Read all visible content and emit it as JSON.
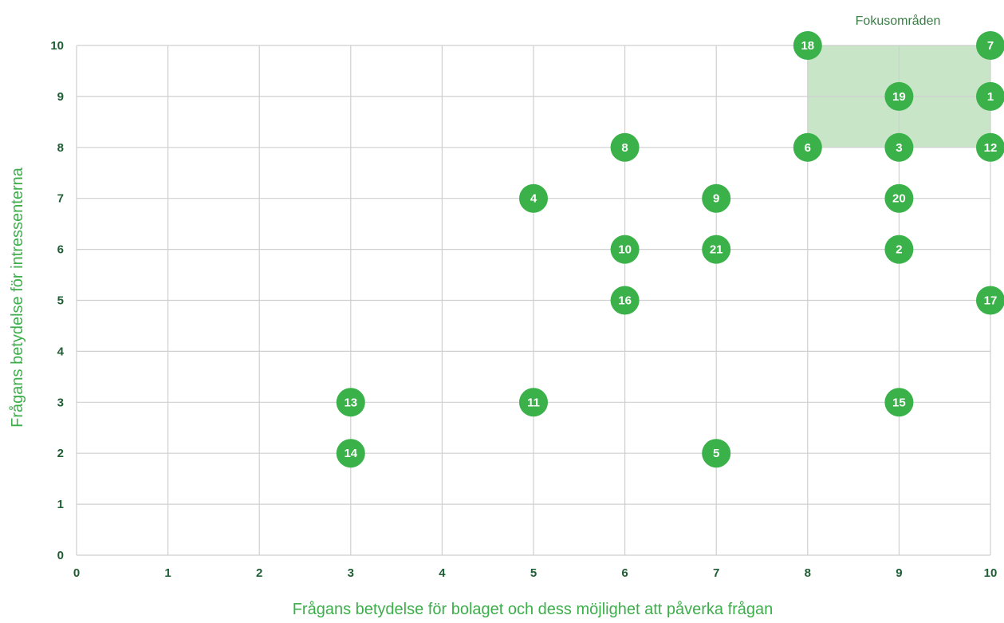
{
  "chart_data": {
    "type": "scatter",
    "xlabel": "Frågans betydelse för bolaget och dess möjlighet att påverka frågan",
    "ylabel": "Frågans betydelse för intressenterna",
    "xlim": [
      0,
      10
    ],
    "ylim": [
      0,
      10
    ],
    "x_ticks": [
      "0",
      "1",
      "2",
      "3",
      "4",
      "5",
      "6",
      "7",
      "8",
      "9",
      "10"
    ],
    "y_ticks": [
      "0",
      "1",
      "2",
      "3",
      "4",
      "5",
      "6",
      "7",
      "8",
      "9",
      "10"
    ],
    "grid": true,
    "focus_area": {
      "label": "Fokusområden",
      "x_range": [
        8,
        10
      ],
      "y_range": [
        8,
        10
      ]
    },
    "colors": {
      "point": "#3bb14a",
      "point_text": "#ffffff",
      "focus": "#c8e5c8",
      "grid": "#cfcfcf",
      "tick": "#1f5e34",
      "axis_title": "#3cae4a"
    },
    "points": [
      {
        "label": "1",
        "x": 10,
        "y": 9
      },
      {
        "label": "2",
        "x": 9,
        "y": 6
      },
      {
        "label": "3",
        "x": 9,
        "y": 8
      },
      {
        "label": "4",
        "x": 5,
        "y": 7
      },
      {
        "label": "5",
        "x": 7,
        "y": 2
      },
      {
        "label": "6",
        "x": 8,
        "y": 8
      },
      {
        "label": "7",
        "x": 10,
        "y": 10
      },
      {
        "label": "8",
        "x": 6,
        "y": 8
      },
      {
        "label": "9",
        "x": 7,
        "y": 7
      },
      {
        "label": "10",
        "x": 6,
        "y": 6
      },
      {
        "label": "11",
        "x": 5,
        "y": 3
      },
      {
        "label": "12",
        "x": 10,
        "y": 8
      },
      {
        "label": "13",
        "x": 3,
        "y": 3
      },
      {
        "label": "14",
        "x": 3,
        "y": 2
      },
      {
        "label": "15",
        "x": 9,
        "y": 3
      },
      {
        "label": "16",
        "x": 6,
        "y": 5
      },
      {
        "label": "17",
        "x": 10,
        "y": 5
      },
      {
        "label": "18",
        "x": 8,
        "y": 10
      },
      {
        "label": "19",
        "x": 9,
        "y": 9
      },
      {
        "label": "20",
        "x": 9,
        "y": 7
      },
      {
        "label": "21",
        "x": 7,
        "y": 6
      }
    ]
  }
}
